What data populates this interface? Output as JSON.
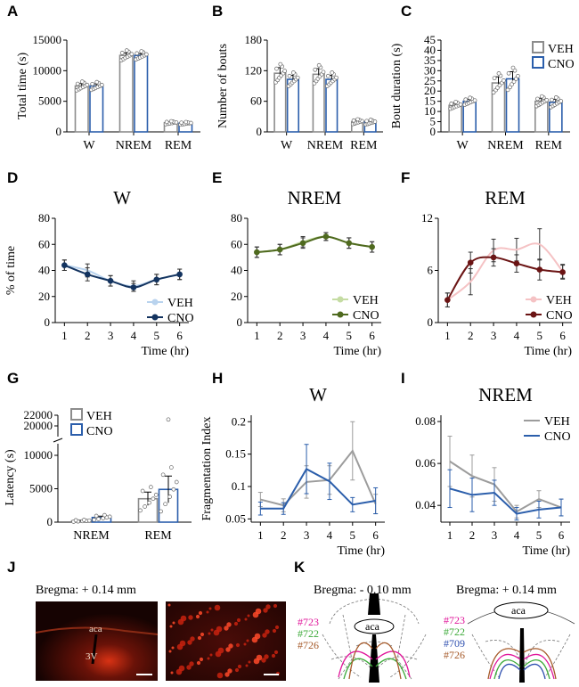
{
  "colors": {
    "veh_bar": "#8c8c8c",
    "cno_bar": "#2b5eab",
    "W_veh": "#b9d3ee",
    "W_cno": "#13335f",
    "NREM_veh": "#c5dca3",
    "NREM_cno": "#4f6a1f",
    "REM_veh": "#f5c2c4",
    "REM_cno": "#6b1414",
    "frag_veh": "#9c9c9c",
    "frag_cno": "#2b5eab"
  },
  "panels": {
    "A": "A",
    "B": "B",
    "C": "C",
    "D": "D",
    "E": "E",
    "F": "F",
    "G": "G",
    "H": "H",
    "I": "I",
    "J": "J",
    "K": "K"
  },
  "chart_data": [
    {
      "id": "A",
      "type": "bar",
      "ylabel": "Total time (s)",
      "categories": [
        "W",
        "NREM",
        "REM"
      ],
      "yticks": [
        0,
        5000,
        10000,
        15000
      ],
      "ylim": [
        0,
        15000
      ],
      "series": [
        {
          "name": "VEH",
          "values": [
            7500,
            12500,
            1500
          ],
          "err": [
            400,
            400,
            150
          ]
        },
        {
          "name": "CNO",
          "values": [
            7500,
            12500,
            1400
          ],
          "err": [
            350,
            300,
            130
          ]
        }
      ]
    },
    {
      "id": "B",
      "type": "bar",
      "ylabel": "Number of bouts",
      "categories": [
        "W",
        "NREM",
        "REM"
      ],
      "yticks": [
        0,
        60,
        120,
        180
      ],
      "ylim": [
        0,
        180
      ],
      "series": [
        {
          "name": "VEH",
          "values": [
            115,
            113,
            20
          ],
          "err": [
            11,
            11,
            3
          ]
        },
        {
          "name": "CNO",
          "values": [
            103,
            103,
            19
          ],
          "err": [
            8,
            8,
            3
          ]
        }
      ]
    },
    {
      "id": "C",
      "type": "bar",
      "ylabel": "Bout duration (s)",
      "categories": [
        "W",
        "NREM",
        "REM"
      ],
      "yticks": [
        0,
        5,
        10,
        15,
        20,
        25,
        30,
        35,
        40,
        45
      ],
      "ylim": [
        0,
        45
      ],
      "legend": [
        "VEH",
        "CNO"
      ],
      "series": [
        {
          "name": "VEH",
          "values": [
            13,
            24,
            15
          ],
          "err": [
            1,
            3,
            1.5
          ]
        },
        {
          "name": "CNO",
          "values": [
            15,
            26,
            14.5
          ],
          "err": [
            1,
            3.5,
            1.5
          ]
        }
      ]
    },
    {
      "id": "D",
      "type": "line",
      "title": "W",
      "ylabel": "% of time",
      "xlabel": "Time (hr)",
      "x": [
        1,
        2,
        3,
        4,
        5,
        6
      ],
      "yticks": [
        0,
        20,
        40,
        60,
        80
      ],
      "ylim": [
        0,
        80
      ],
      "legend": [
        "VEH",
        "CNO"
      ],
      "series": [
        {
          "name": "VEH",
          "values": [
            44,
            40,
            32,
            28,
            33,
            37
          ],
          "err": [
            4,
            5,
            4,
            4,
            4,
            4
          ]
        },
        {
          "name": "CNO",
          "values": [
            44,
            37,
            32,
            27,
            33,
            37
          ],
          "err": [
            4,
            5,
            4,
            3,
            4,
            4
          ]
        }
      ]
    },
    {
      "id": "E",
      "type": "line",
      "title": "NREM",
      "xlabel": "Time (hr)",
      "x": [
        1,
        2,
        3,
        4,
        5,
        6
      ],
      "yticks": [
        0,
        20,
        40,
        60,
        80
      ],
      "ylim": [
        0,
        80
      ],
      "legend": [
        "VEH",
        "CNO"
      ],
      "series": [
        {
          "name": "VEH",
          "values": [
            54,
            56,
            62,
            66,
            61,
            58
          ],
          "err": [
            4,
            4,
            4,
            3,
            4,
            4
          ]
        },
        {
          "name": "CNO",
          "values": [
            54,
            56,
            61,
            66,
            61,
            58
          ],
          "err": [
            4,
            4,
            4,
            3,
            4,
            4
          ]
        }
      ]
    },
    {
      "id": "F",
      "type": "line",
      "title": "REM",
      "xlabel": "Time (hr)",
      "x": [
        1,
        2,
        3,
        4,
        5,
        6
      ],
      "yticks": [
        0,
        6,
        12
      ],
      "ylim": [
        0,
        12
      ],
      "legend": [
        "VEH",
        "CNO"
      ],
      "series": [
        {
          "name": "VEH",
          "values": [
            2.6,
            4.7,
            8.3,
            8.4,
            9.0,
            5.9
          ],
          "err": [
            0.8,
            1.5,
            1.3,
            1.3,
            1.8,
            0.8
          ]
        },
        {
          "name": "CNO",
          "values": [
            2.6,
            6.9,
            7.5,
            6.8,
            6.1,
            5.8
          ],
          "err": [
            0.8,
            1.2,
            1.0,
            1.0,
            1.2,
            0.8
          ]
        }
      ]
    },
    {
      "id": "G",
      "type": "bar",
      "ylabel": "Latency (s)",
      "categories": [
        "NREM",
        "REM"
      ],
      "yticks": [
        0,
        5000,
        10000
      ],
      "yticks_top": [
        20000,
        22000
      ],
      "ylim": [
        0,
        22000
      ],
      "axis_break": true,
      "legend": [
        "VEH",
        "CNO"
      ],
      "series": [
        {
          "name": "VEH",
          "values": [
            200,
            3500
          ],
          "err": [
            80,
            1000
          ]
        },
        {
          "name": "CNO",
          "values": [
            700,
            4900
          ],
          "err": [
            200,
            2000
          ]
        }
      ]
    },
    {
      "id": "H",
      "type": "line",
      "title": "W",
      "ylabel": "Fragmentation Index",
      "xlabel": "Time (hr)",
      "x": [
        1,
        2,
        3,
        4,
        5,
        6
      ],
      "yticks": [
        0.05,
        0.1,
        0.15,
        0.2
      ],
      "ytick_labels": [
        "0.05",
        "0.1",
        "0.15",
        "0.2"
      ],
      "ylim": [
        0.045,
        0.21
      ],
      "series": [
        {
          "name": "VEH",
          "values": [
            0.08,
            0.071,
            0.107,
            0.11,
            0.155,
            0.073
          ],
          "err": [
            0.011,
            0.01,
            0.025,
            0.022,
            0.045,
            0.015
          ]
        },
        {
          "name": "CNO",
          "values": [
            0.066,
            0.066,
            0.127,
            0.108,
            0.072,
            0.078
          ],
          "err": [
            0.01,
            0.009,
            0.038,
            0.028,
            0.011,
            0.02
          ]
        }
      ]
    },
    {
      "id": "I",
      "type": "line",
      "title": "NREM",
      "xlabel": "Time (hr)",
      "x": [
        1,
        2,
        3,
        4,
        5,
        6
      ],
      "yticks": [
        0.04,
        0.06,
        0.08
      ],
      "ytick_labels": [
        "0.04",
        "0.06",
        "0.08"
      ],
      "ylim": [
        0.032,
        0.083
      ],
      "legend": [
        "VEH",
        "CNO"
      ],
      "series": [
        {
          "name": "VEH",
          "values": [
            0.061,
            0.054,
            0.05,
            0.037,
            0.043,
            0.039
          ],
          "err": [
            0.012,
            0.01,
            0.008,
            0.003,
            0.004,
            0.004
          ]
        },
        {
          "name": "CNO",
          "values": [
            0.048,
            0.045,
            0.046,
            0.036,
            0.038,
            0.039
          ],
          "err": [
            0.009,
            0.008,
            0.006,
            0.003,
            0.004,
            0.004
          ]
        }
      ]
    }
  ],
  "histology": {
    "J_title": "Bregma: + 0.14 mm",
    "J_aca": "aca",
    "J_3v": "3V",
    "K_left_title": "Bregma: - 0.10 mm",
    "K_right_title": "Bregma: + 0.14 mm",
    "K_aca": "aca",
    "K_left_ids": [
      {
        "label": "#723",
        "color": "#e0159a"
      },
      {
        "label": "#722",
        "color": "#3daa3a"
      },
      {
        "label": "#726",
        "color": "#a65a2a"
      }
    ],
    "K_right_ids": [
      {
        "label": "#723",
        "color": "#e0159a"
      },
      {
        "label": "#722",
        "color": "#3daa3a"
      },
      {
        "label": "#709",
        "color": "#2f50b0"
      },
      {
        "label": "#726",
        "color": "#a65a2a"
      }
    ]
  }
}
